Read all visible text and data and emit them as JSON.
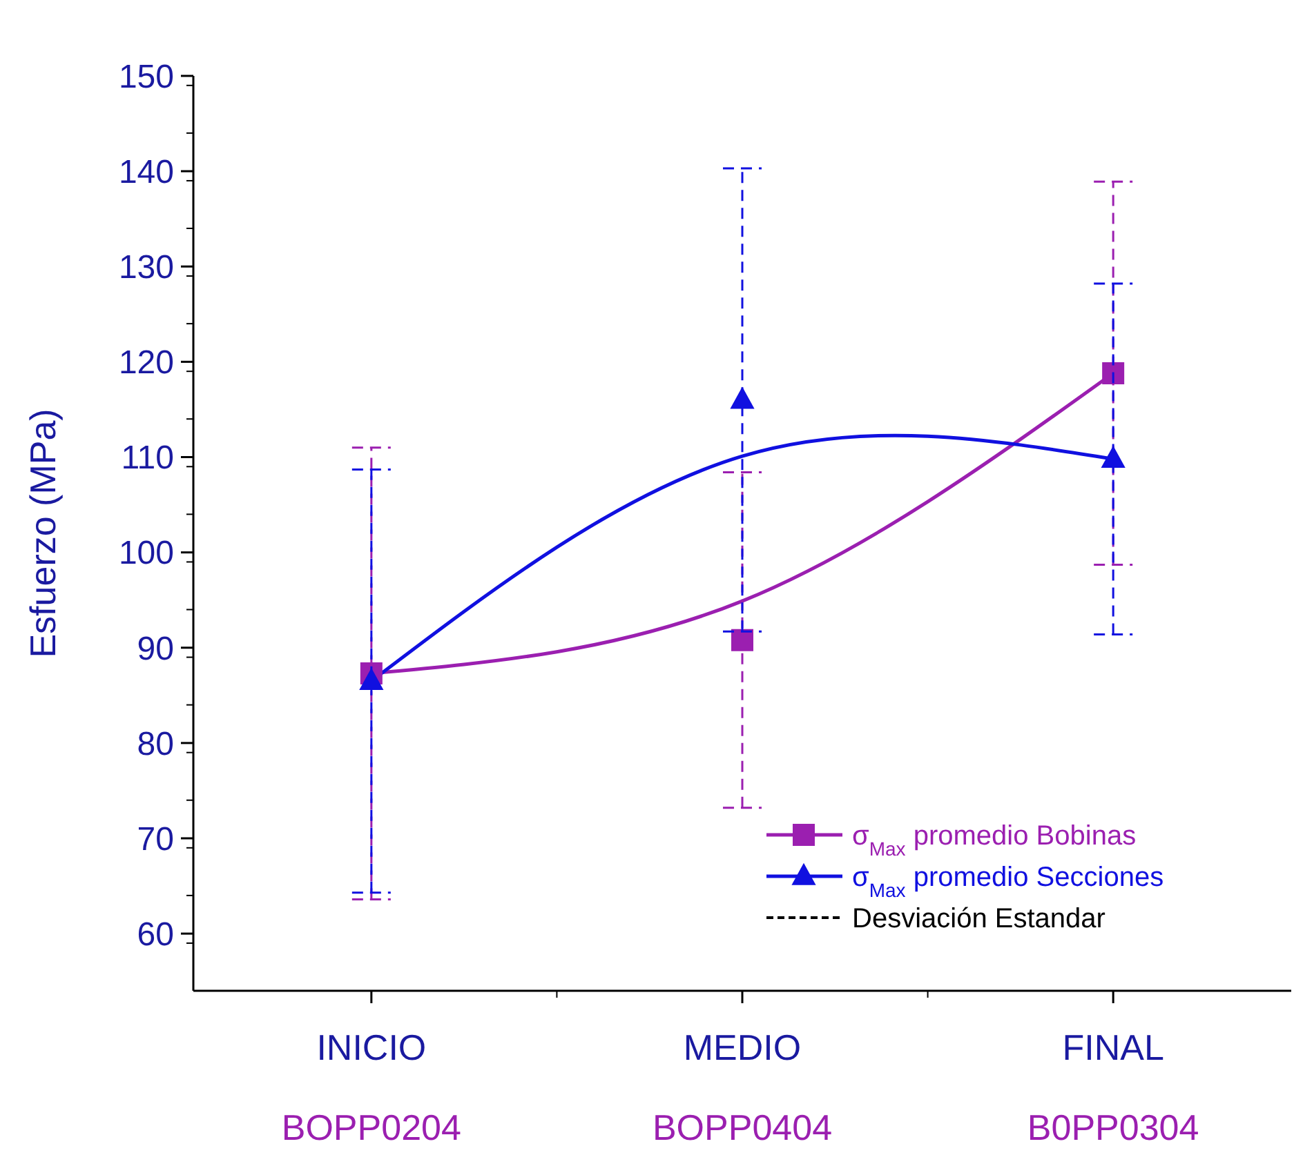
{
  "chart_data": {
    "type": "line",
    "ylabel": "Esfuerzo (MPa)",
    "categories": [
      "INICIO\nBOPP0204",
      "MEDIO\nBOPP0404",
      "FINAL\nB0PP0304"
    ],
    "series": [
      {
        "color": "#9b1fb0",
        "values": [
          87.3,
          94.9,
          118.8
        ]
      },
      {
        "color": "#1010e0",
        "values": [
          86.5,
          110.1,
          109.8
        ]
      },
      {
        "type": "scatter",
        "name": "σ$_{Max}$ promedio Bobinas",
        "color": "#9b1fb0",
        "marker": "square",
        "values": [
          87.3,
          90.8,
          118.8
        ],
        "errors": [
          23.7,
          17.6,
          20.1
        ]
      },
      {
        "type": "scatter",
        "name": "σ$_{Max}$ promedio Secciones",
        "color": "#1010e0",
        "marker": "triangle",
        "values": [
          86.5,
          116,
          109.8
        ],
        "errors": [
          22.2,
          24.3,
          18.4
        ]
      }
    ],
    "ylim": [
      54,
      150
    ],
    "yticks": [
      60,
      70,
      80,
      90,
      100,
      110,
      120,
      130,
      140,
      150
    ],
    "grid": false,
    "legend": "bottom right",
    "line_style": "solid",
    "annotations": [
      "Desviación Estandar"
    ]
  }
}
